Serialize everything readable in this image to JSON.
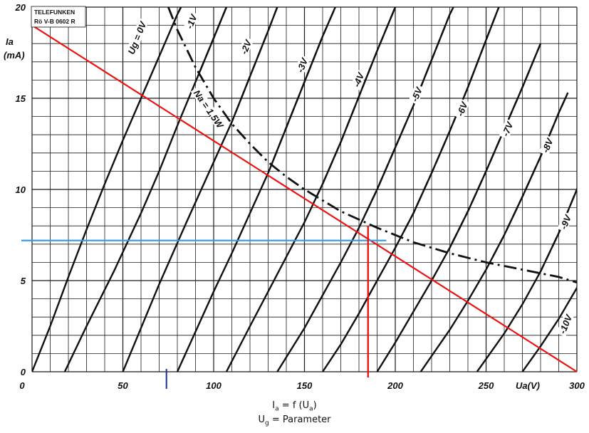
{
  "chart_data": {
    "type": "line",
    "xlim": [
      0,
      300
    ],
    "ylim": [
      0,
      20
    ],
    "x_ticks": [
      {
        "value": 0,
        "label": "0"
      },
      {
        "value": 50,
        "label": "50"
      },
      {
        "value": 100,
        "label": "100"
      },
      {
        "value": 150,
        "label": "150"
      },
      {
        "value": 200,
        "label": "200"
      },
      {
        "value": 250,
        "label": "250"
      },
      {
        "value": 300,
        "label": "300"
      }
    ],
    "y_ticks": [
      {
        "value": 0,
        "label": "0"
      },
      {
        "value": 5,
        "label": "5"
      },
      {
        "value": 10,
        "label": "10"
      },
      {
        "value": 15,
        "label": "15"
      },
      {
        "value": 20,
        "label": "20"
      }
    ],
    "grid": true,
    "stamp": [
      "TELEFUNKEN",
      "Rö V-B 0602 R"
    ],
    "xlabel": "Ua(V)",
    "ylabel": [
      "Ia",
      "(mA)"
    ],
    "series": [
      {
        "name": "Ug = 0V",
        "style": "solid",
        "points": [
          [
            0,
            0
          ],
          [
            10,
            2.5
          ],
          [
            20,
            5.2
          ],
          [
            30,
            7.8
          ],
          [
            40,
            10.3
          ],
          [
            50,
            12.7
          ],
          [
            60,
            15
          ],
          [
            70,
            17.3
          ],
          [
            80,
            19.6
          ],
          [
            82,
            20
          ]
        ]
      },
      {
        "name": "-1V",
        "style": "solid",
        "points": [
          [
            18,
            0
          ],
          [
            30,
            2.5
          ],
          [
            45,
            5.5
          ],
          [
            60,
            8.7
          ],
          [
            70,
            11
          ],
          [
            80,
            13.5
          ],
          [
            90,
            15.9
          ],
          [
            100,
            18.3
          ],
          [
            107,
            20
          ]
        ]
      },
      {
        "name": "-2V",
        "style": "solid",
        "points": [
          [
            50,
            0
          ],
          [
            60,
            2.4
          ],
          [
            70,
            4.8
          ],
          [
            85,
            8.2
          ],
          [
            100,
            11.5
          ],
          [
            110,
            13.7
          ],
          [
            120,
            16.2
          ],
          [
            130,
            18.7
          ],
          [
            135,
            20
          ]
        ]
      },
      {
        "name": "-3V",
        "style": "solid",
        "points": [
          [
            80,
            0
          ],
          [
            90,
            2.2
          ],
          [
            100,
            4.4
          ],
          [
            110,
            6.5
          ],
          [
            120,
            8.7
          ],
          [
            130,
            10.9
          ],
          [
            140,
            13.4
          ],
          [
            150,
            15.9
          ],
          [
            160,
            18.4
          ],
          [
            167,
            20
          ]
        ]
      },
      {
        "name": "-4V",
        "style": "solid",
        "points": [
          [
            107,
            0
          ],
          [
            120,
            2.5
          ],
          [
            130,
            4.4
          ],
          [
            140,
            6.3
          ],
          [
            150,
            8.2
          ],
          [
            160,
            10.3
          ],
          [
            170,
            12.6
          ],
          [
            180,
            15.1
          ],
          [
            190,
            17.6
          ],
          [
            200,
            20
          ]
        ]
      },
      {
        "name": "-5V",
        "style": "solid",
        "points": [
          [
            135,
            0
          ],
          [
            150,
            2.4
          ],
          [
            160,
            4.2
          ],
          [
            170,
            6
          ],
          [
            180,
            7.9
          ],
          [
            190,
            10
          ],
          [
            200,
            12.3
          ],
          [
            210,
            14.6
          ],
          [
            220,
            17.1
          ],
          [
            230,
            19.6
          ],
          [
            232,
            20
          ]
        ]
      },
      {
        "name": "-6V",
        "style": "solid",
        "points": [
          [
            160,
            0
          ],
          [
            170,
            1.5
          ],
          [
            180,
            3.2
          ],
          [
            190,
            5
          ],
          [
            200,
            6.8
          ],
          [
            210,
            8.7
          ],
          [
            220,
            10.9
          ],
          [
            230,
            13.2
          ],
          [
            240,
            15.6
          ],
          [
            250,
            18.2
          ],
          [
            257,
            20
          ]
        ]
      },
      {
        "name": "-7V",
        "style": "solid",
        "points": [
          [
            190,
            0
          ],
          [
            200,
            1.6
          ],
          [
            210,
            3.3
          ],
          [
            220,
            5
          ],
          [
            230,
            6.8
          ],
          [
            240,
            8.8
          ],
          [
            250,
            11
          ],
          [
            260,
            13.3
          ],
          [
            270,
            15.6
          ],
          [
            280,
            18
          ]
        ]
      },
      {
        "name": "-8V",
        "style": "solid",
        "points": [
          [
            214,
            0
          ],
          [
            230,
            2.3
          ],
          [
            240,
            3.9
          ],
          [
            250,
            5.6
          ],
          [
            260,
            7.5
          ],
          [
            270,
            9.6
          ],
          [
            280,
            11.8
          ],
          [
            290,
            14.2
          ],
          [
            295,
            15.3
          ]
        ]
      },
      {
        "name": "-9V",
        "style": "solid",
        "points": [
          [
            245,
            0
          ],
          [
            260,
            2.1
          ],
          [
            270,
            3.7
          ],
          [
            280,
            5.5
          ],
          [
            290,
            7.6
          ],
          [
            300,
            10
          ],
          [
            303,
            10.8
          ]
        ]
      },
      {
        "name": "-10V",
        "style": "solid",
        "points": [
          [
            270,
            0
          ],
          [
            280,
            1.4
          ],
          [
            290,
            2.9
          ],
          [
            300,
            4.6
          ],
          [
            303,
            5.2
          ]
        ]
      },
      {
        "name": "Na = 1,5W",
        "style": "dashdot",
        "points": [
          [
            75,
            20
          ],
          [
            80,
            18.75
          ],
          [
            90,
            16.7
          ],
          [
            100,
            15
          ],
          [
            110,
            13.6
          ],
          [
            120,
            12.5
          ],
          [
            130,
            11.5
          ],
          [
            140,
            10.7
          ],
          [
            150,
            10
          ],
          [
            170,
            8.8
          ],
          [
            190,
            7.9
          ],
          [
            210,
            7.1
          ],
          [
            230,
            6.5
          ],
          [
            250,
            6
          ],
          [
            270,
            5.6
          ],
          [
            290,
            5.2
          ],
          [
            300,
            4.9
          ],
          [
            303,
            4.8
          ]
        ]
      }
    ],
    "series_labels": [
      {
        "text": "Ug = 0V",
        "x": 58,
        "y": 18.3,
        "angle": -68
      },
      {
        "text": "-1V",
        "x": 88,
        "y": 19.2,
        "angle": -68
      },
      {
        "text": "-2V",
        "x": 118,
        "y": 17.8,
        "angle": -68
      },
      {
        "text": "-3V",
        "x": 149,
        "y": 16.8,
        "angle": -68
      },
      {
        "text": "-4V",
        "x": 180,
        "y": 16,
        "angle": -68
      },
      {
        "text": "-5V",
        "x": 212,
        "y": 15.2,
        "angle": -68
      },
      {
        "text": "-6V",
        "x": 237,
        "y": 14.4,
        "angle": -68
      },
      {
        "text": "-7V",
        "x": 262,
        "y": 13.3,
        "angle": -68
      },
      {
        "text": "-8V",
        "x": 284,
        "y": 12.4,
        "angle": -68
      },
      {
        "text": "-9V",
        "x": 294,
        "y": 8.2,
        "angle": -68
      },
      {
        "text": "-10V",
        "x": 294,
        "y": 2.6,
        "angle": -68
      },
      {
        "text": "Na = 1,5W",
        "x": 97,
        "y": 14.4,
        "angle": 55
      }
    ],
    "annotations": {
      "load_line": {
        "color": "#ee1111",
        "points": [
          [
            0,
            19
          ],
          [
            300,
            0
          ]
        ]
      },
      "operating_current": {
        "color": "#3399dd",
        "y": 7.2,
        "x_from": 0,
        "x_to": 195
      },
      "operating_voltage": {
        "color": "#ee1111",
        "x": 185,
        "y_from": -0.3,
        "y_to": 8
      },
      "marker": {
        "color": "#1f2f99",
        "x": 74
      }
    }
  },
  "formula": {
    "line1_lhs": "I",
    "line1_lhs_sub": "a",
    "line1_mid": " = f (U",
    "line1_mid_sub": "a",
    "line1_end": ")",
    "line2_lhs": "U",
    "line2_lhs_sub": "g",
    "line2_rhs": " = Parameter"
  }
}
